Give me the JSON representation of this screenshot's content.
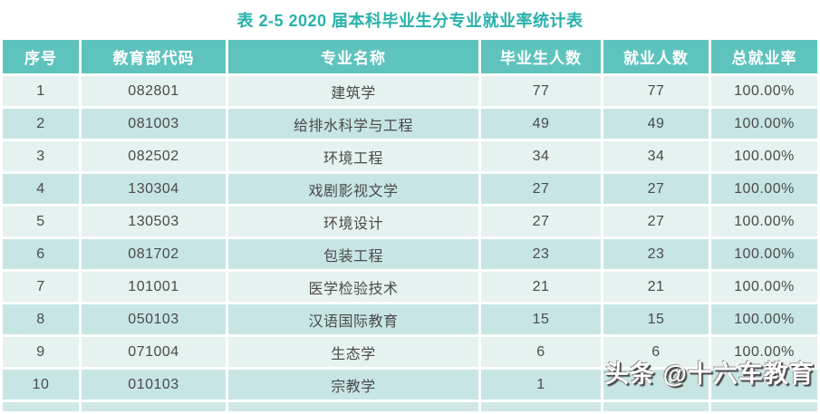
{
  "title": "表 2-5  2020 届本科毕业生分专业就业率统计表",
  "colors": {
    "title_text": "#27b1aa",
    "header_bg": "#5fc3bd",
    "header_text": "#ffffff",
    "row_odd_bg": "#e6f2f0",
    "row_even_bg": "#c7e6e3",
    "cell_text": "#4a4a4a",
    "watermark_text": "#ffffff",
    "watermark_shadow": "#4a4a4a"
  },
  "table": {
    "headers": [
      "序号",
      "教育部代码",
      "专业名称",
      "毕业生人数",
      "就业人数",
      "总就业率"
    ],
    "rows": [
      [
        "1",
        "082801",
        "建筑学",
        "77",
        "77",
        "100.00%"
      ],
      [
        "2",
        "081003",
        "给排水科学与工程",
        "49",
        "49",
        "100.00%"
      ],
      [
        "3",
        "082502",
        "环境工程",
        "34",
        "34",
        "100.00%"
      ],
      [
        "4",
        "130304",
        "戏剧影视文学",
        "27",
        "27",
        "100.00%"
      ],
      [
        "5",
        "130503",
        "环境设计",
        "27",
        "27",
        "100.00%"
      ],
      [
        "6",
        "081702",
        "包装工程",
        "23",
        "23",
        "100.00%"
      ],
      [
        "7",
        "101001",
        "医学检验技术",
        "21",
        "21",
        "100.00%"
      ],
      [
        "8",
        "050103",
        "汉语国际教育",
        "15",
        "15",
        "100.00%"
      ],
      [
        "9",
        "071004",
        "生态学",
        "6",
        "6",
        "100.00%"
      ],
      [
        "10",
        "010103",
        "宗教学",
        "1",
        "",
        ""
      ]
    ]
  },
  "watermark": "头条 @十六车教育"
}
